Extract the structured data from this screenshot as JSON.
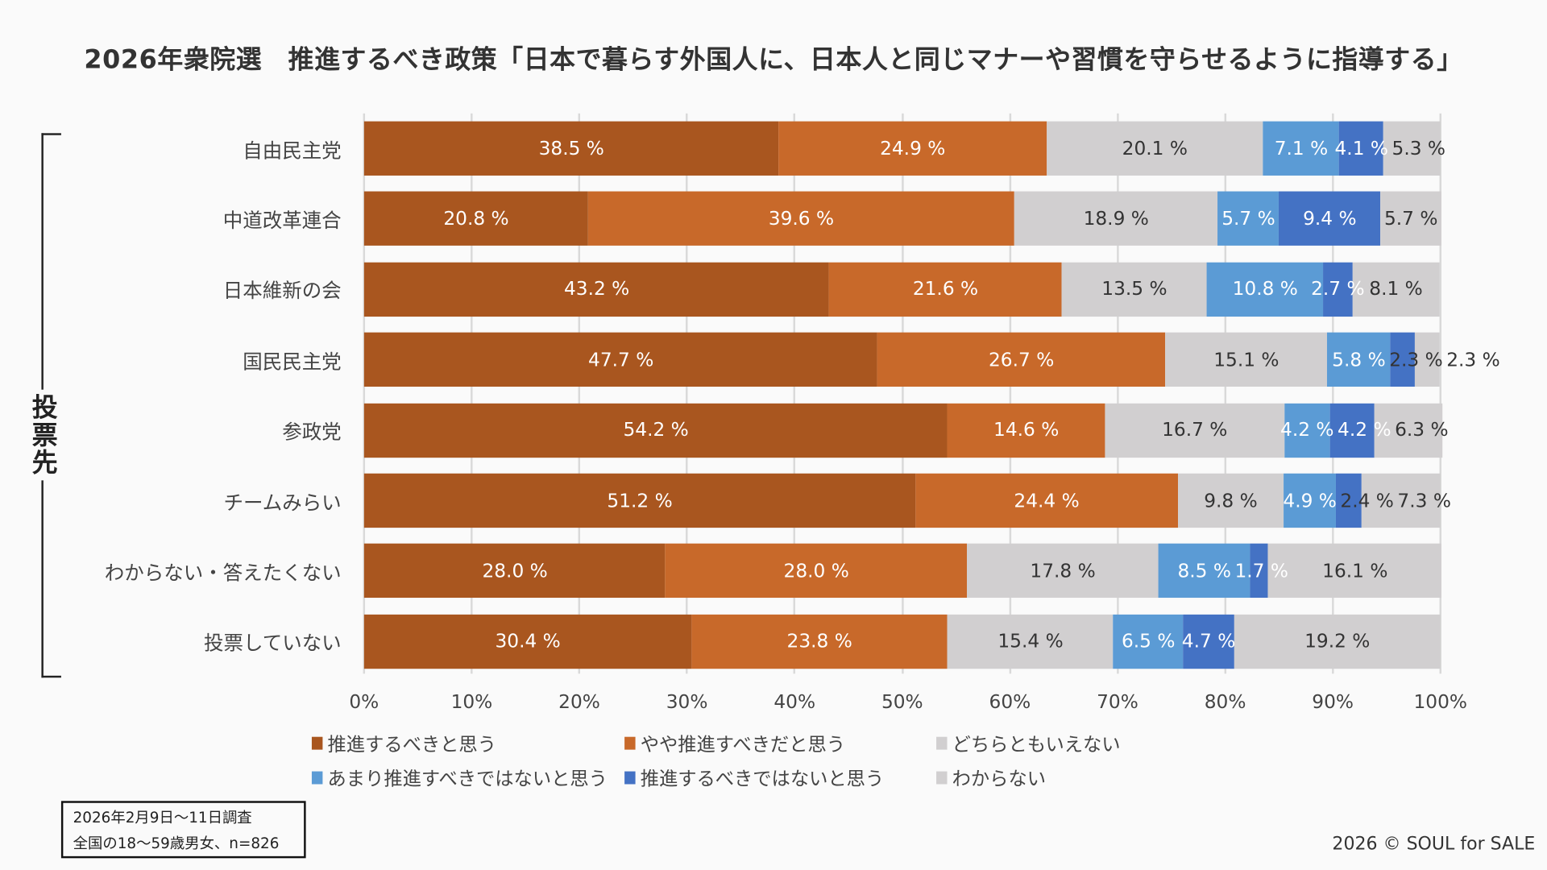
{
  "chart_data": {
    "type": "bar",
    "orientation": "horizontal",
    "stacked": true,
    "title": "2026年衆院選　推進するべき政策「日本で暮らす外国人に、日本人と同じマナーや習慣を守らせるように指導する」",
    "ylabel": "投票先",
    "xlim": [
      0,
      100
    ],
    "x_ticks": [
      "0%",
      "10%",
      "20%",
      "30%",
      "40%",
      "50%",
      "60%",
      "70%",
      "80%",
      "90%",
      "100%"
    ],
    "categories": [
      "自由民主党",
      "中道改革連合",
      "日本維新の会",
      "国民民主党",
      "参政党",
      "チームみらい",
      "わからない・答えたくない",
      "投票していない"
    ],
    "series": [
      {
        "name": "推進するべきと思う",
        "color": "#A9561F",
        "label_color": "#ffffff",
        "values": [
          38.5,
          20.8,
          43.2,
          47.7,
          54.2,
          51.2,
          28.0,
          30.4
        ]
      },
      {
        "name": "やや推進すべきだと思う",
        "color": "#C8692A",
        "label_color": "#ffffff",
        "values": [
          24.9,
          39.6,
          21.6,
          26.7,
          14.6,
          24.4,
          28.0,
          23.8
        ]
      },
      {
        "name": "どちらともいえない",
        "color": "#D1CFD0",
        "label_color": "#333333",
        "values": [
          20.1,
          18.9,
          13.5,
          15.1,
          16.7,
          9.8,
          17.8,
          15.4
        ]
      },
      {
        "name": "あまり推進すべきではないと思う",
        "color": "#5B9BD5",
        "label_color": "#ffffff",
        "values": [
          7.1,
          5.7,
          10.8,
          5.8,
          4.2,
          4.9,
          8.5,
          6.5
        ]
      },
      {
        "name": "推進するべきではないと思う",
        "color": "#4472C4",
        "label_color": "#ffffff",
        "values": [
          4.1,
          9.4,
          2.7,
          2.3,
          4.2,
          2.4,
          1.7,
          4.7
        ]
      },
      {
        "name": "わからない",
        "color": "#D1CFD0",
        "label_color": "#333333",
        "values": [
          5.3,
          5.7,
          8.1,
          2.3,
          6.3,
          7.3,
          16.1,
          19.2
        ]
      }
    ],
    "legend_position": "bottom",
    "grid": true
  },
  "note": {
    "line1": "2026年2月9日〜11日調査",
    "line2": "全国の18〜59歳男女、n=826"
  },
  "copyright": "2026 © SOUL for SALE"
}
